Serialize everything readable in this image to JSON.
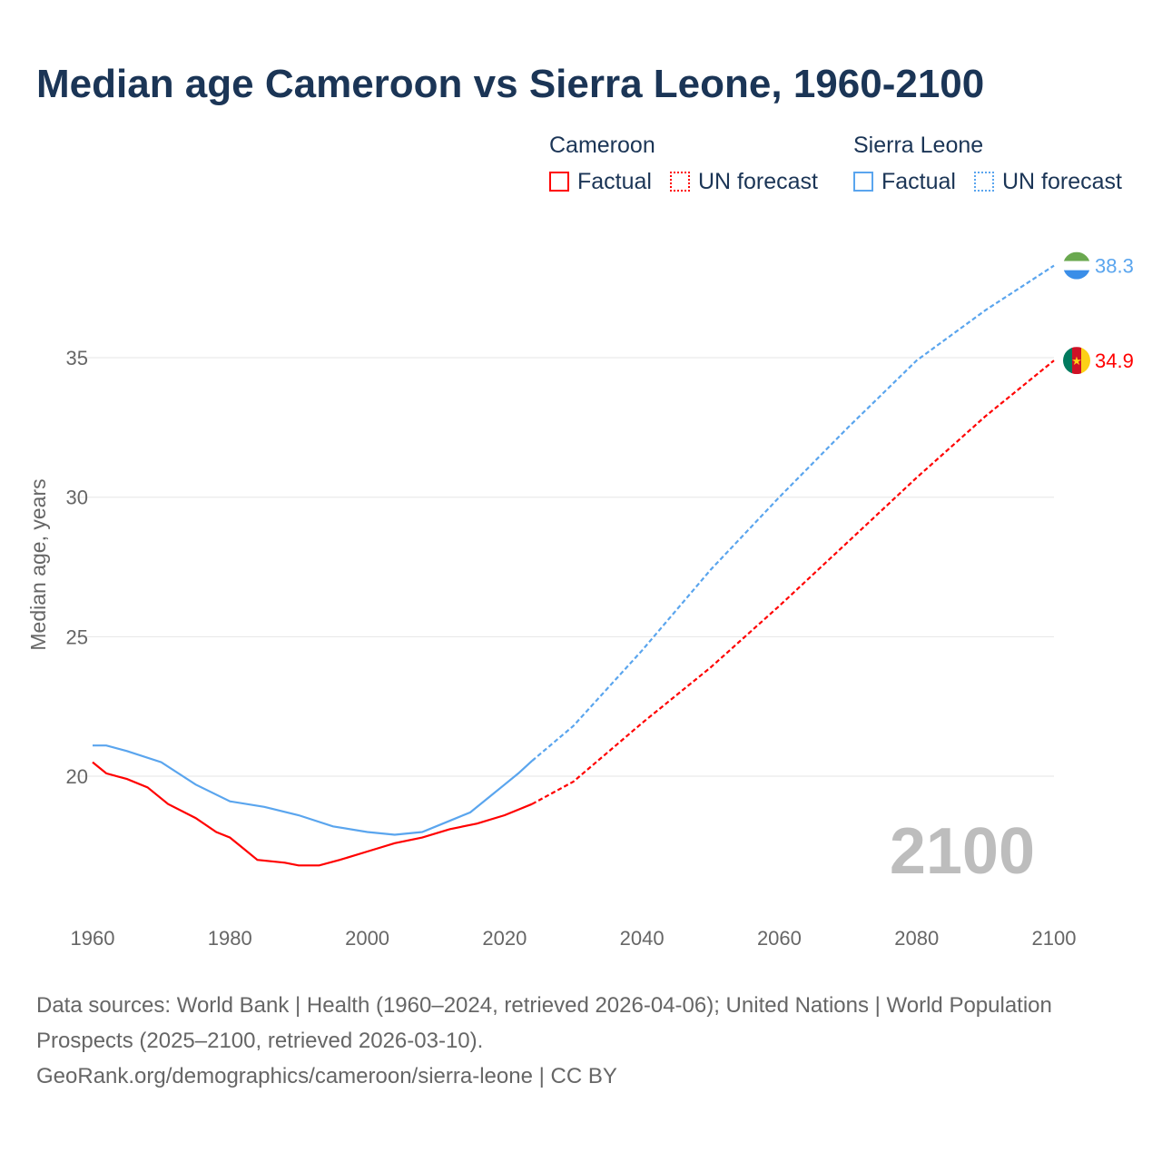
{
  "chart_data": {
    "type": "line",
    "title": "Median age Cameroon vs Sierra Leone, 1960-2100",
    "ylabel": "Median age, years",
    "xlabel": "",
    "xlim": [
      1960,
      2100
    ],
    "ylim": [
      15,
      40
    ],
    "x_ticks": [
      "1960",
      "1980",
      "2000",
      "2020",
      "2040",
      "2060",
      "2080",
      "2100"
    ],
    "y_ticks": [
      "20",
      "25",
      "30",
      "35"
    ],
    "year_watermark": "2100",
    "legend": {
      "groups": [
        {
          "name": "Cameroon",
          "factual": "Factual",
          "forecast": "UN forecast"
        },
        {
          "name": "Sierra Leone",
          "factual": "Factual",
          "forecast": "UN forecast"
        }
      ]
    },
    "series": [
      {
        "name": "Cameroon",
        "color": "#ff0000",
        "end_label": "34.9",
        "factual": {
          "x": [
            1960,
            1962,
            1965,
            1968,
            1971,
            1975,
            1978,
            1980,
            1982,
            1984,
            1988,
            1990,
            1993,
            1996,
            2000,
            2004,
            2008,
            2012,
            2016,
            2020,
            2024
          ],
          "y": [
            20.5,
            20.1,
            19.9,
            19.6,
            19.0,
            18.5,
            18.0,
            17.8,
            17.4,
            17.0,
            16.9,
            16.8,
            16.8,
            17.0,
            17.3,
            17.6,
            17.8,
            18.1,
            18.3,
            18.6,
            19.0
          ]
        },
        "forecast": {
          "x": [
            2024,
            2030,
            2040,
            2050,
            2060,
            2070,
            2080,
            2090,
            2100
          ],
          "y": [
            19.0,
            19.8,
            21.9,
            23.9,
            26.1,
            28.4,
            30.7,
            32.9,
            34.9
          ]
        }
      },
      {
        "name": "Sierra Leone",
        "color": "#5aa5ee",
        "end_label": "38.3",
        "factual": {
          "x": [
            1960,
            1962,
            1965,
            1970,
            1975,
            1980,
            1985,
            1990,
            1995,
            2000,
            2004,
            2008,
            2012,
            2015,
            2018,
            2020,
            2022,
            2024
          ],
          "y": [
            21.1,
            21.1,
            20.9,
            20.5,
            19.7,
            19.1,
            18.9,
            18.6,
            18.2,
            18.0,
            17.9,
            18.0,
            18.4,
            18.7,
            19.3,
            19.7,
            20.1,
            20.55
          ]
        },
        "forecast": {
          "x": [
            2024,
            2030,
            2040,
            2050,
            2060,
            2070,
            2080,
            2090,
            2100
          ],
          "y": [
            20.55,
            21.8,
            24.5,
            27.4,
            30.0,
            32.5,
            34.9,
            36.7,
            38.3
          ]
        }
      }
    ]
  },
  "footer": {
    "sources": "Data sources: World Bank | Health (1960–2024, retrieved 2026-04-06); United Nations | World Population Prospects (2025–2100, retrieved 2026-03-10).",
    "link": "GeoRank.org/demographics/cameroon/sierra-leone | CC BY"
  }
}
